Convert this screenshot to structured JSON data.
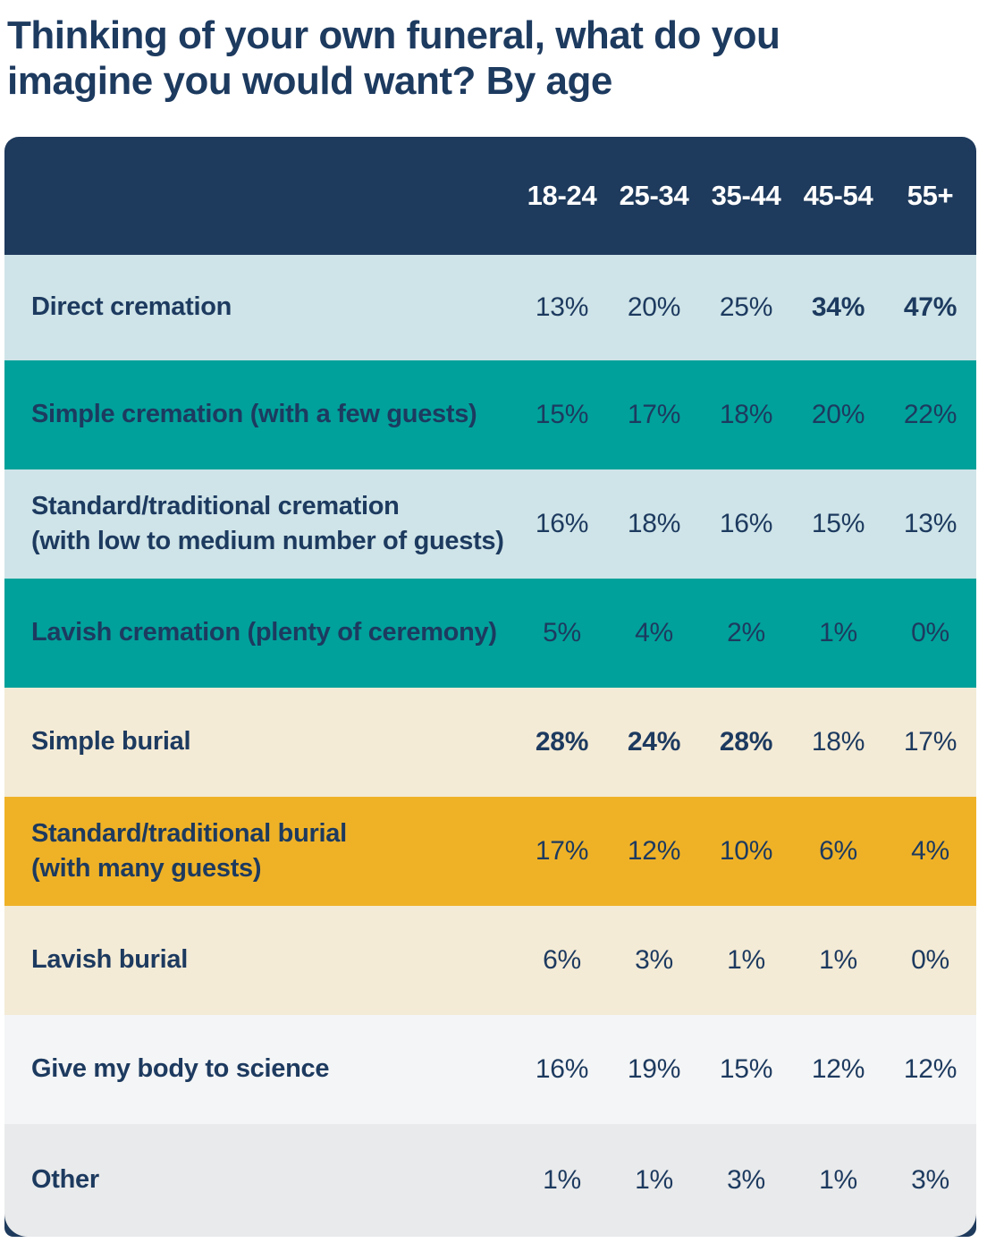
{
  "title": "Thinking of your own funeral, what do you imagine you would want? By age",
  "colors": {
    "navy_header": "#1E3A5C",
    "text_navy": "#1D3A5F",
    "row_pale_blue": "#CFE4E8",
    "row_teal": "#00A19A",
    "row_cream": "#F4EBD6",
    "row_amber": "#EFB227",
    "row_white": "#F4F5F6",
    "row_gray": "#E9EAEB",
    "header_text": "#FFFFFF"
  },
  "table": {
    "columns": [
      "18-24",
      "25-34",
      "35-44",
      "45-54",
      "55+"
    ],
    "rows": [
      {
        "label": "Direct cremation",
        "values": [
          "13%",
          "20%",
          "25%",
          "34%",
          "47%"
        ],
        "bold": [
          false,
          false,
          false,
          true,
          true
        ]
      },
      {
        "label": "Simple cremation (with a few guests)",
        "values": [
          "15%",
          "17%",
          "18%",
          "20%",
          "22%"
        ],
        "bold": [
          false,
          false,
          false,
          false,
          false
        ]
      },
      {
        "label": "Standard/traditional cremation\n(with low to medium number of guests)",
        "values": [
          "16%",
          "18%",
          "16%",
          "15%",
          "13%"
        ],
        "bold": [
          false,
          false,
          false,
          false,
          false
        ]
      },
      {
        "label": "Lavish cremation (plenty of ceremony)",
        "values": [
          "5%",
          "4%",
          "2%",
          "1%",
          "0%"
        ],
        "bold": [
          false,
          false,
          false,
          false,
          false
        ]
      },
      {
        "label": "Simple burial",
        "values": [
          "28%",
          "24%",
          "28%",
          "18%",
          "17%"
        ],
        "bold": [
          true,
          true,
          true,
          false,
          false
        ]
      },
      {
        "label": "Standard/traditional burial\n(with many guests)",
        "values": [
          "17%",
          "12%",
          "10%",
          "6%",
          "4%"
        ],
        "bold": [
          false,
          false,
          false,
          false,
          false
        ]
      },
      {
        "label": "Lavish burial",
        "values": [
          "6%",
          "3%",
          "1%",
          "1%",
          "0%"
        ],
        "bold": [
          false,
          false,
          false,
          false,
          false
        ]
      },
      {
        "label": "Give my body to science",
        "values": [
          "16%",
          "19%",
          "15%",
          "12%",
          "12%"
        ],
        "bold": [
          false,
          false,
          false,
          false,
          false
        ]
      },
      {
        "label": "Other",
        "values": [
          "1%",
          "1%",
          "3%",
          "1%",
          "3%"
        ],
        "bold": [
          false,
          false,
          false,
          false,
          false
        ]
      }
    ]
  },
  "chart_data": {
    "type": "table",
    "title": "Thinking of your own funeral, what do you imagine you would want? By age",
    "categories": [
      "18-24",
      "25-34",
      "35-44",
      "45-54",
      "55+"
    ],
    "series": [
      {
        "name": "Direct cremation",
        "values": [
          13,
          20,
          25,
          34,
          47
        ]
      },
      {
        "name": "Simple cremation (with a few guests)",
        "values": [
          15,
          17,
          18,
          20,
          22
        ]
      },
      {
        "name": "Standard/traditional cremation (with low to medium number of guests)",
        "values": [
          16,
          18,
          16,
          15,
          13
        ]
      },
      {
        "name": "Lavish cremation (plenty of ceremony)",
        "values": [
          5,
          4,
          2,
          1,
          0
        ]
      },
      {
        "name": "Simple burial",
        "values": [
          28,
          24,
          28,
          18,
          17
        ]
      },
      {
        "name": "Standard/traditional burial (with many guests)",
        "values": [
          17,
          12,
          10,
          6,
          4
        ]
      },
      {
        "name": "Lavish burial",
        "values": [
          6,
          3,
          1,
          1,
          0
        ]
      },
      {
        "name": "Give my body to science",
        "values": [
          16,
          19,
          15,
          12,
          12
        ]
      },
      {
        "name": "Other",
        "values": [
          1,
          1,
          3,
          1,
          3
        ]
      }
    ],
    "units": "percent",
    "emphasized_cells": [
      {
        "row": "Direct cremation",
        "columns": [
          "45-54",
          "55+"
        ]
      },
      {
        "row": "Simple burial",
        "columns": [
          "18-24",
          "25-34",
          "35-44"
        ]
      }
    ]
  }
}
